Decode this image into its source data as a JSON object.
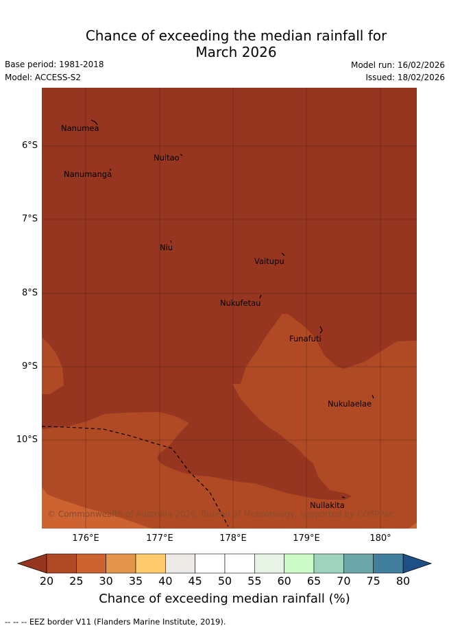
{
  "title": {
    "line1": "Chance of exceeding the median rainfall for",
    "line2": "March 2026"
  },
  "meta": {
    "base_period": "Base period: 1981-2018",
    "model": "Model: ACCESS-S2",
    "model_run": "Model run: 16/02/2026",
    "issued": "Issued: 18/02/2026"
  },
  "map": {
    "places": [
      "Nanumea",
      "Nuitao",
      "Nanumanga",
      "Niu",
      "Vaitupu",
      "Nukufetau",
      "Funafuti",
      "Nukulaelae",
      "Nuilakita"
    ],
    "copyright": "© Commonwealth of Australia 2026, Bureau of Meteorology, supported by COSPPac",
    "lat_labels": [
      "6°S",
      "7°S",
      "8°S",
      "9°S",
      "10°S"
    ],
    "lon_labels": [
      "176°E",
      "177°E",
      "178°E",
      "179°E",
      "180°"
    ]
  },
  "colorbar": {
    "ticks": [
      "20",
      "25",
      "30",
      "35",
      "40",
      "45",
      "50",
      "55",
      "60",
      "65",
      "70",
      "75",
      "80"
    ],
    "colors": [
      "#b04a25",
      "#cc6331",
      "#e3954b",
      "#fdcb6c",
      "#ece9e6",
      "#ffffff",
      "#ffffff",
      "#e7f4e5",
      "#ccfbc8",
      "#a0d3be",
      "#6da6a8",
      "#427f9c"
    ],
    "under_color": "#963621",
    "over_color": "#1d5086",
    "title": "Chance of exceeding median rainfall (%)"
  },
  "footer": "-- -- -- EEZ border V11 (Flanders Marine Institute, 2019)."
}
